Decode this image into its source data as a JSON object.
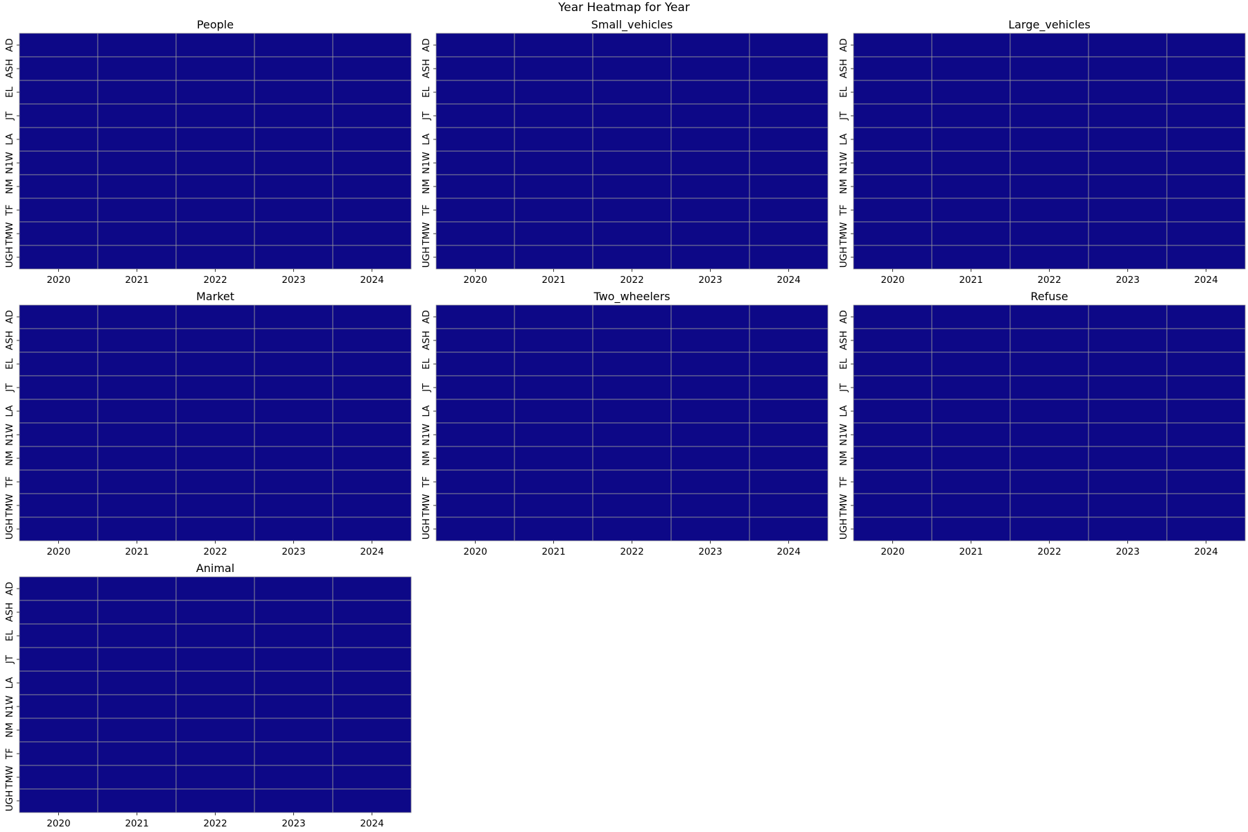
{
  "figure_title": "Year Heatmap for Year",
  "chart_data": [
    {
      "type": "heatmap",
      "title": "People",
      "x": [
        "2020",
        "2021",
        "2022",
        "2023",
        "2024"
      ],
      "y": [
        "AD",
        "ASH",
        "EL",
        "JT",
        "LA",
        "N1W",
        "NM",
        "TF",
        "TMW",
        "UGH"
      ],
      "values": [
        [
          0,
          0,
          0,
          0,
          0
        ],
        [
          0,
          0,
          0,
          0,
          0
        ],
        [
          0,
          0,
          0,
          0,
          0
        ],
        [
          0,
          0,
          0,
          0,
          0
        ],
        [
          0,
          0,
          0,
          0,
          0
        ],
        [
          0,
          0,
          0,
          0,
          0
        ],
        [
          0,
          0,
          0,
          0,
          0
        ],
        [
          0,
          0,
          0,
          0,
          0
        ],
        [
          0,
          0,
          0,
          0,
          0
        ],
        [
          0,
          0,
          0,
          0,
          0
        ]
      ],
      "colormap": "plasma",
      "xlabel": "",
      "ylabel": ""
    },
    {
      "type": "heatmap",
      "title": "Small_vehicles",
      "x": [
        "2020",
        "2021",
        "2022",
        "2023",
        "2024"
      ],
      "y": [
        "AD",
        "ASH",
        "EL",
        "JT",
        "LA",
        "N1W",
        "NM",
        "TF",
        "TMW",
        "UGH"
      ],
      "values": [
        [
          0,
          0,
          0,
          0,
          0
        ],
        [
          0,
          0,
          0,
          0,
          0
        ],
        [
          0,
          0,
          0,
          0,
          0
        ],
        [
          0,
          0,
          0,
          0,
          0
        ],
        [
          0,
          0,
          0,
          0,
          0
        ],
        [
          0,
          0,
          0,
          0,
          0
        ],
        [
          0,
          0,
          0,
          0,
          0
        ],
        [
          0,
          0,
          0,
          0,
          0
        ],
        [
          0,
          0,
          0,
          0,
          0
        ],
        [
          0,
          0,
          0,
          0,
          0
        ]
      ],
      "colormap": "plasma",
      "xlabel": "",
      "ylabel": ""
    },
    {
      "type": "heatmap",
      "title": "Large_vehicles",
      "x": [
        "2020",
        "2021",
        "2022",
        "2023",
        "2024"
      ],
      "y": [
        "AD",
        "ASH",
        "EL",
        "JT",
        "LA",
        "N1W",
        "NM",
        "TF",
        "TMW",
        "UGH"
      ],
      "values": [
        [
          0,
          0,
          0,
          0,
          0
        ],
        [
          0,
          0,
          0,
          0,
          0
        ],
        [
          0,
          0,
          0,
          0,
          0
        ],
        [
          0,
          0,
          0,
          0,
          0
        ],
        [
          0,
          0,
          0,
          0,
          0
        ],
        [
          0,
          0,
          0,
          0,
          0
        ],
        [
          0,
          0,
          0,
          0,
          0
        ],
        [
          0,
          0,
          0,
          0,
          0
        ],
        [
          0,
          0,
          0,
          0,
          0
        ],
        [
          0,
          0,
          0,
          0,
          0
        ]
      ],
      "colormap": "plasma",
      "xlabel": "",
      "ylabel": ""
    },
    {
      "type": "heatmap",
      "title": "Market",
      "x": [
        "2020",
        "2021",
        "2022",
        "2023",
        "2024"
      ],
      "y": [
        "AD",
        "ASH",
        "EL",
        "JT",
        "LA",
        "N1W",
        "NM",
        "TF",
        "TMW",
        "UGH"
      ],
      "values": [
        [
          0,
          0,
          0,
          0,
          0
        ],
        [
          0,
          0,
          0,
          0,
          0
        ],
        [
          0,
          0,
          0,
          0,
          0
        ],
        [
          0,
          0,
          0,
          0,
          0
        ],
        [
          0,
          0,
          0,
          0,
          0
        ],
        [
          0,
          0,
          0,
          0,
          0
        ],
        [
          0,
          0,
          0,
          0,
          0
        ],
        [
          0,
          0,
          0,
          0,
          0
        ],
        [
          0,
          0,
          0,
          0,
          0
        ],
        [
          0,
          0,
          0,
          0,
          0
        ]
      ],
      "colormap": "plasma",
      "xlabel": "",
      "ylabel": ""
    },
    {
      "type": "heatmap",
      "title": "Two_wheelers",
      "x": [
        "2020",
        "2021",
        "2022",
        "2023",
        "2024"
      ],
      "y": [
        "AD",
        "ASH",
        "EL",
        "JT",
        "LA",
        "N1W",
        "NM",
        "TF",
        "TMW",
        "UGH"
      ],
      "values": [
        [
          0,
          0,
          0,
          0,
          0
        ],
        [
          0,
          0,
          0,
          0,
          0
        ],
        [
          0,
          0,
          0,
          0,
          0
        ],
        [
          0,
          0,
          0,
          0,
          0
        ],
        [
          0,
          0,
          0,
          0,
          0
        ],
        [
          0,
          0,
          0,
          0,
          0
        ],
        [
          0,
          0,
          0,
          0,
          0
        ],
        [
          0,
          0,
          0,
          0,
          0
        ],
        [
          0,
          0,
          0,
          0,
          0
        ],
        [
          0,
          0,
          0,
          0,
          0
        ]
      ],
      "colormap": "plasma",
      "xlabel": "",
      "ylabel": ""
    },
    {
      "type": "heatmap",
      "title": "Refuse",
      "x": [
        "2020",
        "2021",
        "2022",
        "2023",
        "2024"
      ],
      "y": [
        "AD",
        "ASH",
        "EL",
        "JT",
        "LA",
        "N1W",
        "NM",
        "TF",
        "TMW",
        "UGH"
      ],
      "values": [
        [
          0,
          0,
          0,
          0,
          0
        ],
        [
          0,
          0,
          0,
          0,
          0
        ],
        [
          0,
          0,
          0,
          0,
          0
        ],
        [
          0,
          0,
          0,
          0,
          0
        ],
        [
          0,
          0,
          0,
          0,
          0
        ],
        [
          0,
          0,
          0,
          0,
          0
        ],
        [
          0,
          0,
          0,
          0,
          0
        ],
        [
          0,
          0,
          0,
          0,
          0
        ],
        [
          0,
          0,
          0,
          0,
          0
        ],
        [
          0,
          0,
          0,
          0,
          0
        ]
      ],
      "colormap": "plasma",
      "xlabel": "",
      "ylabel": ""
    },
    {
      "type": "heatmap",
      "title": "Animal",
      "x": [
        "2020",
        "2021",
        "2022",
        "2023",
        "2024"
      ],
      "y": [
        "AD",
        "ASH",
        "EL",
        "JT",
        "LA",
        "N1W",
        "NM",
        "TF",
        "TMW",
        "UGH"
      ],
      "values": [
        [
          0,
          0,
          0,
          0,
          0
        ],
        [
          0,
          0,
          0,
          0,
          0
        ],
        [
          0,
          0,
          0,
          0,
          0
        ],
        [
          0,
          0,
          0,
          0,
          0
        ],
        [
          0,
          0,
          0,
          0,
          0
        ],
        [
          0,
          0,
          0,
          0,
          0
        ],
        [
          0,
          0,
          0,
          0,
          0
        ],
        [
          0,
          0,
          0,
          0,
          0
        ],
        [
          0,
          0,
          0,
          0,
          0
        ],
        [
          0,
          0,
          0,
          0,
          0
        ]
      ],
      "colormap": "plasma",
      "xlabel": "",
      "ylabel": ""
    }
  ],
  "colors": {
    "cell_fill": "#0d0887",
    "grid_line": "#9a9a9a",
    "background": "#ffffff"
  }
}
